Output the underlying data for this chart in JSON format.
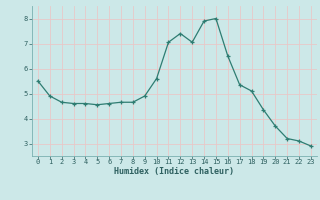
{
  "x": [
    0,
    1,
    2,
    3,
    4,
    5,
    6,
    7,
    8,
    9,
    10,
    11,
    12,
    13,
    14,
    15,
    16,
    17,
    18,
    19,
    20,
    21,
    22,
    23
  ],
  "y": [
    5.5,
    4.9,
    4.65,
    4.6,
    4.6,
    4.55,
    4.6,
    4.65,
    4.65,
    4.9,
    5.6,
    7.05,
    7.4,
    7.05,
    7.9,
    8.0,
    6.5,
    5.35,
    5.1,
    4.35,
    3.7,
    3.2,
    3.1,
    2.9
  ],
  "xlabel": "Humidex (Indice chaleur)",
  "xlim": [
    -0.5,
    23.5
  ],
  "ylim": [
    2.5,
    8.5
  ],
  "yticks": [
    3,
    4,
    5,
    6,
    7,
    8
  ],
  "xticks": [
    0,
    1,
    2,
    3,
    4,
    5,
    6,
    7,
    8,
    9,
    10,
    11,
    12,
    13,
    14,
    15,
    16,
    17,
    18,
    19,
    20,
    21,
    22,
    23
  ],
  "line_color": "#2e7d72",
  "marker": "+",
  "bg_color": "#cce8e8",
  "grid_color": "#e8c8c8",
  "text_color": "#2e6060",
  "spine_color": "#7ab0b0",
  "font_family": "monospace",
  "tick_fontsize": 5.0,
  "xlabel_fontsize": 6.0
}
